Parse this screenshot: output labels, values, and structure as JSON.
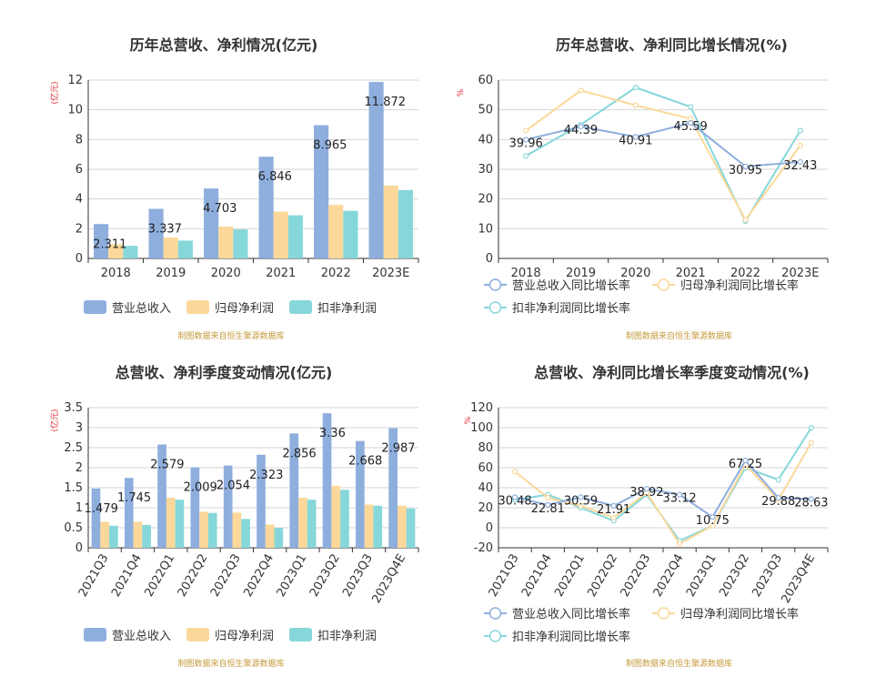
{
  "chart_data": [
    {
      "type": "bar",
      "title": "历年总营收、净利情况(亿元)",
      "ylabel": "(亿元)",
      "ylim": [
        0,
        12
      ],
      "yticks": [
        0,
        2,
        4,
        6,
        8,
        10,
        12
      ],
      "categories": [
        "2018",
        "2019",
        "2020",
        "2021",
        "2022",
        "2023E"
      ],
      "series": [
        {
          "name": "营业总收入",
          "color": "#8eaedd",
          "values": [
            2.311,
            3.337,
            4.703,
            6.846,
            8.965,
            11.872
          ],
          "labels": [
            "2.311",
            "3.337",
            "4.703",
            "6.846",
            "8.965",
            "11.872"
          ]
        },
        {
          "name": "归母净利润",
          "color": "#fbd89a",
          "values": [
            0.95,
            1.4,
            2.15,
            3.15,
            3.6,
            4.9
          ]
        },
        {
          "name": "扣非净利润",
          "color": "#86d7d9",
          "values": [
            0.85,
            1.2,
            1.95,
            2.9,
            3.2,
            4.6
          ]
        }
      ],
      "legend_position": "bottom",
      "source": "制图数据来自恒生聚源数据库"
    },
    {
      "type": "line",
      "title": "历年总营收、净利同比增长情况(%)",
      "ylabel": "%",
      "ylim": [
        0,
        60
      ],
      "yticks": [
        0,
        10,
        20,
        30,
        40,
        50,
        60
      ],
      "categories": [
        "2018",
        "2019",
        "2020",
        "2021",
        "2022",
        "2023E"
      ],
      "series": [
        {
          "name": "营业总收入同比增长率",
          "color": "#8eaedd",
          "values": [
            39.96,
            44.39,
            40.91,
            45.59,
            30.95,
            32.43
          ],
          "labels": [
            "39.96",
            "44.39",
            "40.91",
            "45.59",
            "30.95",
            "32.43"
          ]
        },
        {
          "name": "归母净利润同比增长率",
          "color": "#fbd89a",
          "values": [
            43,
            56.5,
            51.5,
            47,
            13,
            38
          ]
        },
        {
          "name": "扣非净利润同比增长率",
          "color": "#86d7d9",
          "values": [
            34.5,
            45,
            57.5,
            51,
            12.5,
            43
          ]
        }
      ],
      "legend_position": "bottom",
      "source": "制图数据来自恒生聚源数据库"
    },
    {
      "type": "bar",
      "title": "总营收、净利季度变动情况(亿元)",
      "ylabel": "(亿元)",
      "ylim": [
        0,
        3.5
      ],
      "yticks": [
        0,
        0.5,
        1,
        1.5,
        2,
        2.5,
        3,
        3.5
      ],
      "categories": [
        "2021Q3",
        "2021Q4",
        "2022Q1",
        "2022Q2",
        "2022Q3",
        "2022Q4",
        "2023Q1",
        "2023Q2",
        "2023Q3",
        "2023Q4E"
      ],
      "series": [
        {
          "name": "营业总收入",
          "color": "#8eaedd",
          "values": [
            1.479,
            1.745,
            2.579,
            2.009,
            2.054,
            2.323,
            2.856,
            3.36,
            2.668,
            2.987
          ],
          "labels": [
            "1.479",
            "1.745",
            "2.579",
            "2.009",
            "2.054",
            "2.323",
            "2.856",
            "3.36",
            "2.668",
            "2.987"
          ]
        },
        {
          "name": "归母净利润",
          "color": "#fbd89a",
          "values": [
            0.65,
            0.65,
            1.25,
            0.9,
            0.88,
            0.58,
            1.25,
            1.55,
            1.08,
            1.05
          ]
        },
        {
          "name": "扣非净利润",
          "color": "#86d7d9",
          "values": [
            0.55,
            0.57,
            1.2,
            0.87,
            0.72,
            0.5,
            1.2,
            1.45,
            1.05,
            0.98
          ]
        }
      ],
      "legend_position": "bottom",
      "source": "制图数据来自恒生聚源数据库"
    },
    {
      "type": "line",
      "title": "总营收、净利同比增长率季度变动情况(%)",
      "ylabel": "%",
      "ylim": [
        -20,
        120
      ],
      "yticks": [
        -20,
        0,
        20,
        40,
        60,
        80,
        100,
        120
      ],
      "categories": [
        "2021Q3",
        "2021Q4",
        "2022Q1",
        "2022Q2",
        "2022Q3",
        "2022Q4",
        "2023Q1",
        "2023Q2",
        "2023Q3",
        "2023Q4E"
      ],
      "series": [
        {
          "name": "营业总收入同比增长率",
          "color": "#8eaedd",
          "values": [
            30.48,
            22.81,
            30.59,
            21.91,
            38.92,
            33.12,
            10.75,
            67.25,
            29.88,
            28.63
          ],
          "labels": [
            "30.48",
            "22.81",
            "30.59",
            "21.91",
            "38.92",
            "33.12",
            "10.75",
            "67.25",
            "29.88",
            "28.63"
          ]
        },
        {
          "name": "归母净利润同比增长率",
          "color": "#fbd89a",
          "values": [
            56,
            30,
            22,
            10,
            35,
            -16,
            2,
            63,
            28,
            85
          ]
        },
        {
          "name": "扣非净利润同比增长率",
          "color": "#86d7d9",
          "values": [
            28,
            33,
            20,
            7,
            33,
            -13,
            2,
            60,
            48,
            100
          ]
        }
      ],
      "legend_position": "bottom",
      "source": "制图数据来自恒生聚源数据库"
    }
  ]
}
